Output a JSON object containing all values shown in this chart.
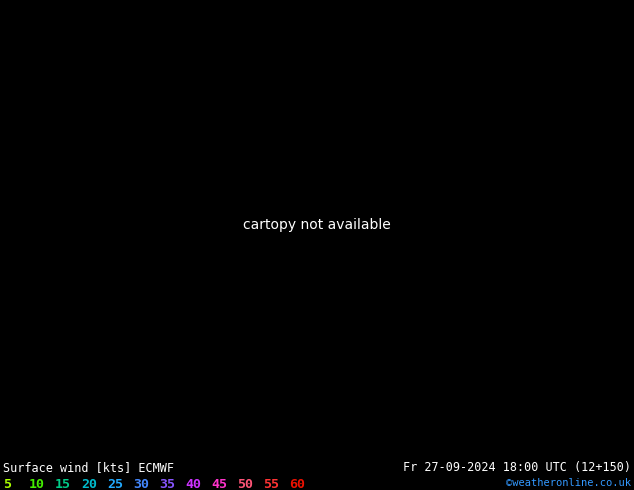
{
  "title_left": "Surface wind [kts] ECMWF",
  "title_right": "Fr 27-09-2024 18:00 UTC (12+150)",
  "credit": "©weatheronline.co.uk",
  "legend_values": [
    5,
    10,
    15,
    20,
    25,
    30,
    35,
    40,
    45,
    50,
    55,
    60
  ],
  "legend_colors": [
    "#aaff00",
    "#44ee00",
    "#00cc44",
    "#00bbaa",
    "#22aaff",
    "#4488ff",
    "#8866ff",
    "#cc44ff",
    "#ff44cc",
    "#ff6688",
    "#ff4444",
    "#ff2200"
  ],
  "fig_width": 6.34,
  "fig_height": 4.9,
  "dpi": 100,
  "map_extent": [
    -10,
    40,
    52,
    75
  ],
  "wind_colormap": {
    "colors": [
      "#00ccff",
      "#00ddcc",
      "#00cc88",
      "#44cc00",
      "#aadd00",
      "#ffff00",
      "#ffcc00",
      "#ff8800",
      "#ff4400",
      "#ff0000",
      "#dd0000",
      "#aa0000"
    ],
    "levels": [
      0,
      5,
      10,
      15,
      20,
      25,
      30,
      35,
      40,
      45,
      50,
      55,
      60
    ]
  },
  "ocean_color_deep": "#0077cc",
  "ocean_color_mid": "#00aadd",
  "ocean_color_light": "#44ccee",
  "bg_color_topleft": "#00ccaa",
  "bg_color_topright": "#aaddaa"
}
